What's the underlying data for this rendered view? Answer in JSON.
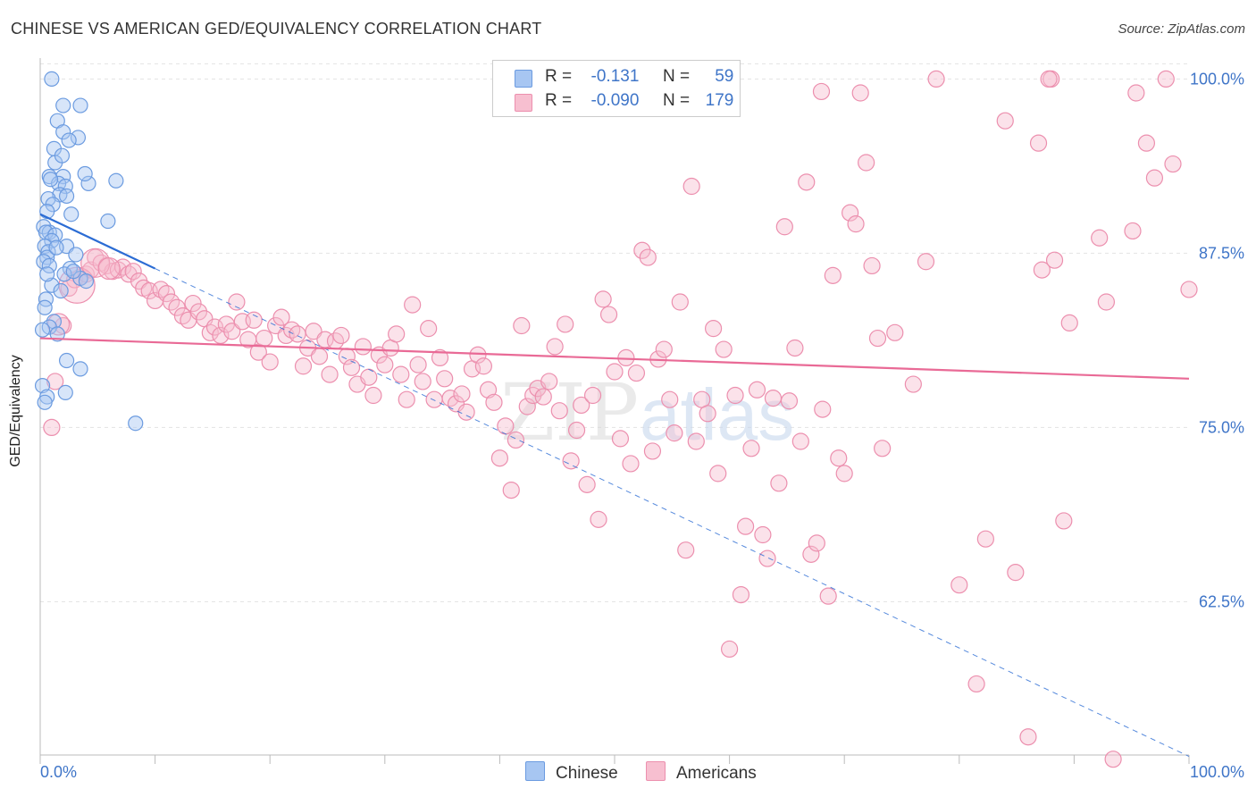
{
  "title": "CHINESE VS AMERICAN GED/EQUIVALENCY CORRELATION CHART",
  "source": "Source: ZipAtlas.com",
  "watermark": {
    "zip": "ZIP",
    "atlas": "atlas"
  },
  "legend": {
    "rows": [
      {
        "label_r": "R =",
        "r": "-0.131",
        "label_n": "N =",
        "n": "59"
      },
      {
        "label_r": "R =",
        "r": "-0.090",
        "label_n": "N =",
        "n": "179"
      }
    ]
  },
  "chart_data": {
    "type": "scatter",
    "title": "CHINESE VS AMERICAN GED/EQUIVALENCY CORRELATION CHART",
    "xlabel": "",
    "ylabel": "GED/Equivalency",
    "xlim": [
      0,
      100
    ],
    "ylim": [
      51.5,
      101.5
    ],
    "x_tick_labels": [
      "0.0%",
      "100.0%"
    ],
    "y_ticks": [
      100.0,
      87.5,
      75.0,
      62.5
    ],
    "y_tick_labels": [
      "100.0%",
      "87.5%",
      "75.0%",
      "62.5%"
    ],
    "grid": true,
    "colors": {
      "chinese_fill": "#a7c6f2",
      "chinese_stroke": "#6b9be0",
      "chinese_line": "#2b6cd4",
      "american_fill": "#f7bfd0",
      "american_stroke": "#ec8fae",
      "american_line": "#e96a96",
      "axis_label": "#3f75c8"
    },
    "series": [
      {
        "name": "Chinese",
        "R": -0.131,
        "N": 59,
        "trend": {
          "x0": 0,
          "y0": 90.3,
          "x1": 10,
          "y1": 86.4,
          "dash_to_x": 100,
          "dash_to_y": 51.4
        },
        "points": [
          [
            1.0,
            100.0
          ],
          [
            2.0,
            98.1
          ],
          [
            3.5,
            98.1
          ],
          [
            1.5,
            97.0
          ],
          [
            2.0,
            96.2
          ],
          [
            1.2,
            95.0
          ],
          [
            3.3,
            95.8
          ],
          [
            2.5,
            95.6
          ],
          [
            1.3,
            94.0
          ],
          [
            0.8,
            93.0
          ],
          [
            2.0,
            93.0
          ],
          [
            1.6,
            92.5
          ],
          [
            2.2,
            92.3
          ],
          [
            4.2,
            92.5
          ],
          [
            6.6,
            92.7
          ],
          [
            1.7,
            91.7
          ],
          [
            2.3,
            91.6
          ],
          [
            0.7,
            91.4
          ],
          [
            1.1,
            91.0
          ],
          [
            0.6,
            90.5
          ],
          [
            5.9,
            89.8
          ],
          [
            0.3,
            89.4
          ],
          [
            0.8,
            89.0
          ],
          [
            0.5,
            89.0
          ],
          [
            1.3,
            88.8
          ],
          [
            1.0,
            88.4
          ],
          [
            2.3,
            88.0
          ],
          [
            0.4,
            88.0
          ],
          [
            0.7,
            87.6
          ],
          [
            0.6,
            87.2
          ],
          [
            0.3,
            86.9
          ],
          [
            0.8,
            86.6
          ],
          [
            2.6,
            86.4
          ],
          [
            2.1,
            86.0
          ],
          [
            3.5,
            85.7
          ],
          [
            1.0,
            85.2
          ],
          [
            4.0,
            85.5
          ],
          [
            0.5,
            84.2
          ],
          [
            0.4,
            83.6
          ],
          [
            1.2,
            82.6
          ],
          [
            0.8,
            82.2
          ],
          [
            0.2,
            82.0
          ],
          [
            1.5,
            81.7
          ],
          [
            2.3,
            79.8
          ],
          [
            3.5,
            79.2
          ],
          [
            0.2,
            78.0
          ],
          [
            2.2,
            77.5
          ],
          [
            0.6,
            77.2
          ],
          [
            8.3,
            75.3
          ],
          [
            0.4,
            76.8
          ],
          [
            1.8,
            84.8
          ],
          [
            2.9,
            86.2
          ],
          [
            0.6,
            86.0
          ],
          [
            1.4,
            87.9
          ],
          [
            3.1,
            87.4
          ],
          [
            2.7,
            90.3
          ],
          [
            0.9,
            92.8
          ],
          [
            3.9,
            93.2
          ],
          [
            1.9,
            94.5
          ]
        ]
      },
      {
        "name": "Americans",
        "R": -0.09,
        "N": 179,
        "trend": {
          "x0": 0,
          "y0": 81.4,
          "x1": 100,
          "y1": 78.5
        },
        "points": [
          [
            1.0,
            75.0
          ],
          [
            1.3,
            78.3
          ],
          [
            2.0,
            82.3
          ],
          [
            2.5,
            85.0
          ],
          [
            3.0,
            85.6
          ],
          [
            3.5,
            85.8
          ],
          [
            4.0,
            86.0
          ],
          [
            4.4,
            86.3
          ],
          [
            4.8,
            87.2
          ],
          [
            5.3,
            86.8
          ],
          [
            5.8,
            86.6
          ],
          [
            6.3,
            86.2
          ],
          [
            6.8,
            86.3
          ],
          [
            7.2,
            86.5
          ],
          [
            7.7,
            86.0
          ],
          [
            8.1,
            86.2
          ],
          [
            8.6,
            85.5
          ],
          [
            9.0,
            85.0
          ],
          [
            9.5,
            84.8
          ],
          [
            10.0,
            84.1
          ],
          [
            10.5,
            84.9
          ],
          [
            11.0,
            84.6
          ],
          [
            11.4,
            84.0
          ],
          [
            11.9,
            83.6
          ],
          [
            12.4,
            83.0
          ],
          [
            12.9,
            82.7
          ],
          [
            13.3,
            83.9
          ],
          [
            13.8,
            83.3
          ],
          [
            14.3,
            82.8
          ],
          [
            14.8,
            81.8
          ],
          [
            15.2,
            82.2
          ],
          [
            15.7,
            81.6
          ],
          [
            16.2,
            82.4
          ],
          [
            16.7,
            81.9
          ],
          [
            17.1,
            84.0
          ],
          [
            17.6,
            82.6
          ],
          [
            18.1,
            81.3
          ],
          [
            18.6,
            82.7
          ],
          [
            19.0,
            80.4
          ],
          [
            19.5,
            81.4
          ],
          [
            20.0,
            79.7
          ],
          [
            20.5,
            82.3
          ],
          [
            21.0,
            82.9
          ],
          [
            21.4,
            81.6
          ],
          [
            21.9,
            82.0
          ],
          [
            22.4,
            81.7
          ],
          [
            22.9,
            79.4
          ],
          [
            23.3,
            80.7
          ],
          [
            23.8,
            81.9
          ],
          [
            24.3,
            80.1
          ],
          [
            24.8,
            81.3
          ],
          [
            25.2,
            78.8
          ],
          [
            25.7,
            81.2
          ],
          [
            26.2,
            81.6
          ],
          [
            26.7,
            80.1
          ],
          [
            27.1,
            79.3
          ],
          [
            27.6,
            78.1
          ],
          [
            28.1,
            80.8
          ],
          [
            28.6,
            78.6
          ],
          [
            29.0,
            77.3
          ],
          [
            29.5,
            80.2
          ],
          [
            30.0,
            79.5
          ],
          [
            30.5,
            80.7
          ],
          [
            31.0,
            81.7
          ],
          [
            31.4,
            78.8
          ],
          [
            31.9,
            77.0
          ],
          [
            32.4,
            83.8
          ],
          [
            32.9,
            79.5
          ],
          [
            33.3,
            78.3
          ],
          [
            33.8,
            82.1
          ],
          [
            34.3,
            77.0
          ],
          [
            34.8,
            80.0
          ],
          [
            35.2,
            78.5
          ],
          [
            35.7,
            77.1
          ],
          [
            36.2,
            76.7
          ],
          [
            36.7,
            77.4
          ],
          [
            37.1,
            76.1
          ],
          [
            37.6,
            79.2
          ],
          [
            38.1,
            80.2
          ],
          [
            38.6,
            79.4
          ],
          [
            39.0,
            77.7
          ],
          [
            39.5,
            76.8
          ],
          [
            40.0,
            72.8
          ],
          [
            40.5,
            75.1
          ],
          [
            41.0,
            70.5
          ],
          [
            41.4,
            74.1
          ],
          [
            41.9,
            82.3
          ],
          [
            42.4,
            76.5
          ],
          [
            42.9,
            77.3
          ],
          [
            43.3,
            77.8
          ],
          [
            43.8,
            77.2
          ],
          [
            44.3,
            78.3
          ],
          [
            44.8,
            80.8
          ],
          [
            45.2,
            76.2
          ],
          [
            45.7,
            82.4
          ],
          [
            46.2,
            72.6
          ],
          [
            46.7,
            74.8
          ],
          [
            47.1,
            76.6
          ],
          [
            47.6,
            70.9
          ],
          [
            48.1,
            77.3
          ],
          [
            48.6,
            68.4
          ],
          [
            49.0,
            84.2
          ],
          [
            49.5,
            83.1
          ],
          [
            50.0,
            79.0
          ],
          [
            50.5,
            74.2
          ],
          [
            51.0,
            80.0
          ],
          [
            51.4,
            72.4
          ],
          [
            51.9,
            78.9
          ],
          [
            52.4,
            87.7
          ],
          [
            52.9,
            87.2
          ],
          [
            53.3,
            73.3
          ],
          [
            53.8,
            79.9
          ],
          [
            54.3,
            80.6
          ],
          [
            54.8,
            77.0
          ],
          [
            55.2,
            74.6
          ],
          [
            55.7,
            84.0
          ],
          [
            56.2,
            66.2
          ],
          [
            56.7,
            92.3
          ],
          [
            57.1,
            74.0
          ],
          [
            57.6,
            77.0
          ],
          [
            58.1,
            76.0
          ],
          [
            58.6,
            82.1
          ],
          [
            59.0,
            71.7
          ],
          [
            59.5,
            80.6
          ],
          [
            60.0,
            59.1
          ],
          [
            60.5,
            77.3
          ],
          [
            61.0,
            63.0
          ],
          [
            61.4,
            67.9
          ],
          [
            61.9,
            73.5
          ],
          [
            62.4,
            77.7
          ],
          [
            62.9,
            67.3
          ],
          [
            63.3,
            65.6
          ],
          [
            63.8,
            77.1
          ],
          [
            64.3,
            71.0
          ],
          [
            64.8,
            89.4
          ],
          [
            65.2,
            76.9
          ],
          [
            65.7,
            80.7
          ],
          [
            66.2,
            74.0
          ],
          [
            66.7,
            92.6
          ],
          [
            67.1,
            65.9
          ],
          [
            67.6,
            66.7
          ],
          [
            68.1,
            76.3
          ],
          [
            68.6,
            62.9
          ],
          [
            69.0,
            85.9
          ],
          [
            69.5,
            72.8
          ],
          [
            70.0,
            71.7
          ],
          [
            70.5,
            90.4
          ],
          [
            71.0,
            89.6
          ],
          [
            71.4,
            99.0
          ],
          [
            71.9,
            94.0
          ],
          [
            72.4,
            86.6
          ],
          [
            72.9,
            81.4
          ],
          [
            73.3,
            73.5
          ],
          [
            74.4,
            81.8
          ],
          [
            76.0,
            78.1
          ],
          [
            77.1,
            86.9
          ],
          [
            78.0,
            100.0
          ],
          [
            80.0,
            63.7
          ],
          [
            81.5,
            56.6
          ],
          [
            82.3,
            67.0
          ],
          [
            84.0,
            97.0
          ],
          [
            84.9,
            64.6
          ],
          [
            86.0,
            52.8
          ],
          [
            86.9,
            95.4
          ],
          [
            87.2,
            86.3
          ],
          [
            88.0,
            100.0
          ],
          [
            88.3,
            87.0
          ],
          [
            89.1,
            68.3
          ],
          [
            89.6,
            82.5
          ],
          [
            92.2,
            88.6
          ],
          [
            92.8,
            84.0
          ],
          [
            93.4,
            51.2
          ],
          [
            95.1,
            89.1
          ],
          [
            96.3,
            95.4
          ],
          [
            97.0,
            92.9
          ],
          [
            98.0,
            100.0
          ],
          [
            100.0,
            84.9
          ],
          [
            98.6,
            93.9
          ],
          [
            87.8,
            100.0
          ],
          [
            95.4,
            99.0
          ],
          [
            68.0,
            99.1
          ]
        ]
      }
    ]
  }
}
